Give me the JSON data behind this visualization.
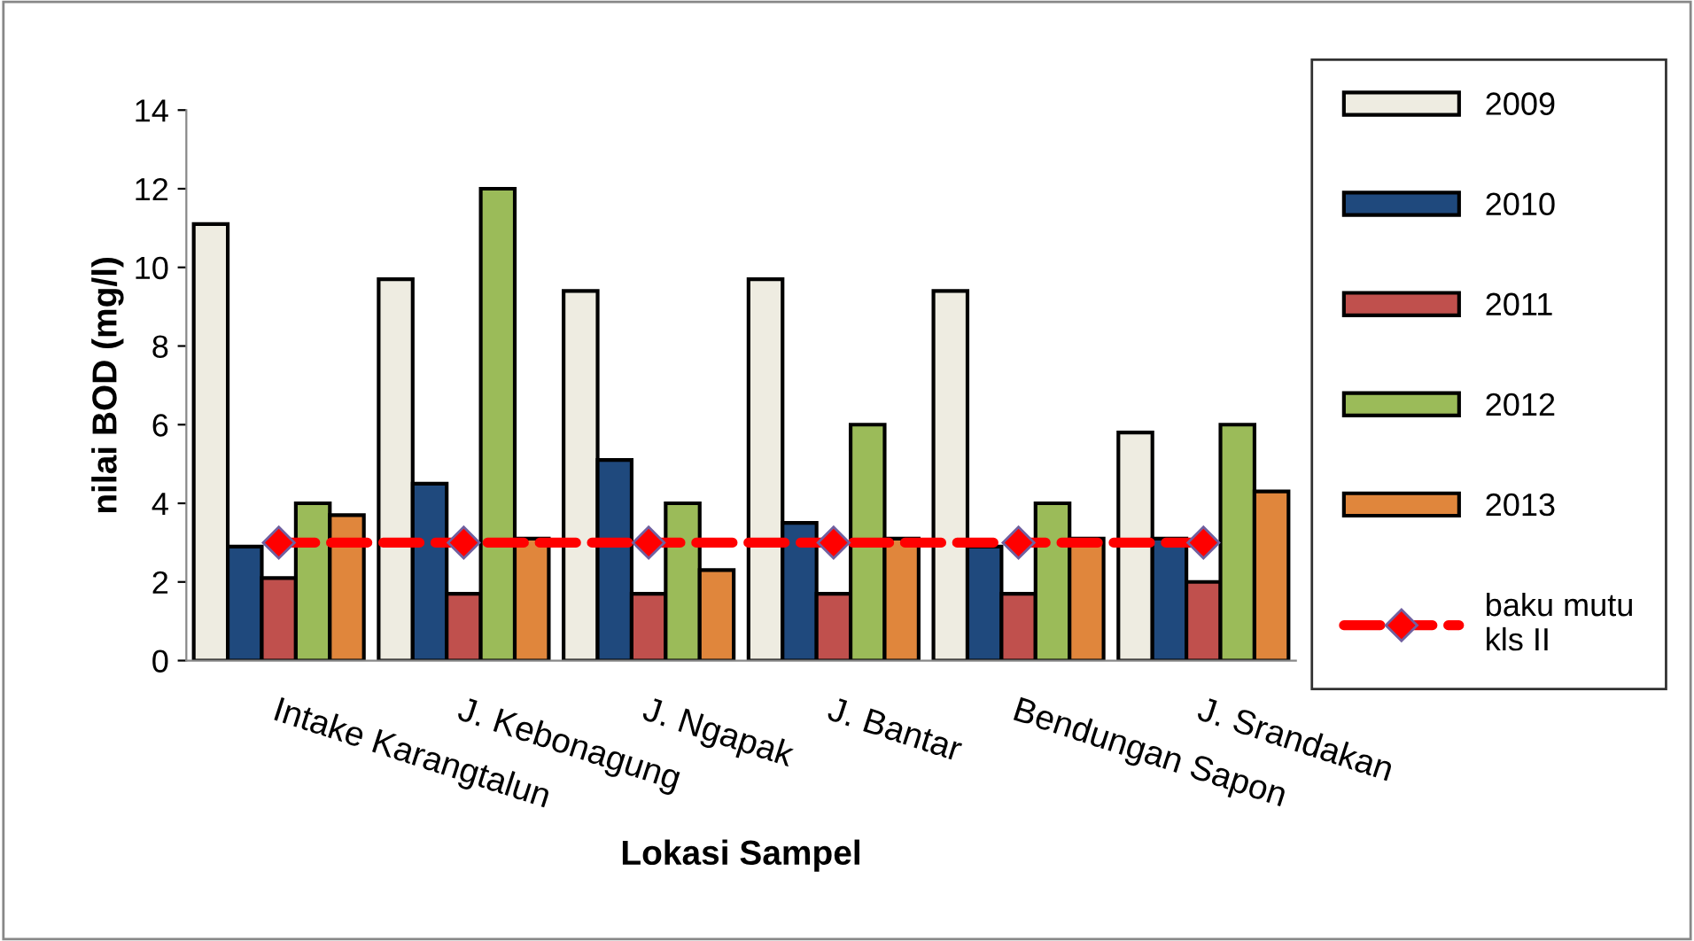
{
  "chart_data": {
    "type": "bar",
    "xlabel": "Lokasi Sampel",
    "ylabel": "nilai BOD (mg/l)",
    "categories": [
      "Intake Karangtalun",
      "J. Kebonagung",
      "J. Ngapak",
      "J. Bantar",
      "Bendungan Sapon",
      "J. Srandakan"
    ],
    "series": [
      {
        "name": "2009",
        "color": "#eeece1",
        "values": [
          11.1,
          9.7,
          9.4,
          9.7,
          9.4,
          5.8
        ]
      },
      {
        "name": "2010",
        "color": "#1f497d",
        "values": [
          2.9,
          4.5,
          5.1,
          3.5,
          2.9,
          3.1
        ]
      },
      {
        "name": "2011",
        "color": "#c0504d",
        "values": [
          2.1,
          1.7,
          1.7,
          1.7,
          1.7,
          2.0
        ]
      },
      {
        "name": "2012",
        "color": "#9bbb59",
        "values": [
          4,
          12,
          4,
          6,
          4,
          6
        ]
      },
      {
        "name": "2013",
        "color": "#e0863c",
        "values": [
          3.7,
          3.1,
          2.3,
          3.1,
          3.1,
          4.3
        ]
      },
      {
        "name": "baku mutu kls II",
        "type": "line",
        "color": "#ff0000",
        "values": [
          3,
          3,
          3,
          3,
          3,
          3
        ],
        "marker": "diamond",
        "line_style": "dashed"
      }
    ],
    "ylim": [
      0,
      14
    ],
    "yticks": [
      0,
      2,
      4,
      6,
      8,
      10,
      12,
      14
    ],
    "grid": false,
    "legend": "right"
  }
}
